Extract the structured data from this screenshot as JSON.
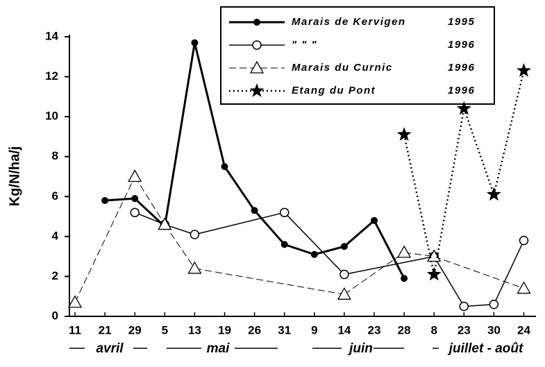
{
  "chart_data": {
    "type": "line",
    "y_label": "Kg/N/ha/j",
    "categories": [
      "11",
      "21",
      "29",
      "5",
      "13",
      "19",
      "26",
      "31",
      "9",
      "14",
      "23",
      "28",
      "8",
      "23",
      "30",
      "24"
    ],
    "months": [
      "avril",
      "mai",
      "juin",
      "juillet - août"
    ],
    "ylim": [
      0,
      14
    ],
    "yticks": [
      0,
      2,
      4,
      6,
      8,
      10,
      12,
      14
    ],
    "series": [
      {
        "name": "Marais de Kervigen",
        "period": "1995",
        "color": "#000000",
        "dash": "solid",
        "marker": "filled-circle",
        "values": [
          null,
          5.8,
          5.9,
          4.5,
          13.7,
          7.5,
          5.3,
          3.6,
          3.1,
          3.5,
          4.8,
          1.9,
          null,
          null,
          null,
          null
        ]
      },
      {
        "name": "\"     \"     \"",
        "period": "1996",
        "color": "#000000",
        "dash": "solid",
        "marker": "open-circle",
        "values": [
          null,
          null,
          5.2,
          4.6,
          4.1,
          null,
          null,
          5.2,
          null,
          2.1,
          null,
          null,
          3.0,
          0.5,
          0.6,
          3.8
        ]
      },
      {
        "name": "Marais du Curnic",
        "period": "1996",
        "color": "#000000",
        "dash": "dashed",
        "marker": "open-triangle",
        "values": [
          0.7,
          null,
          7.0,
          4.6,
          2.4,
          null,
          null,
          null,
          null,
          1.1,
          null,
          3.2,
          3.0,
          null,
          null,
          1.4
        ]
      },
      {
        "name": "Etang du Pont",
        "period": "1996",
        "color": "#000000",
        "dash": "dotted",
        "marker": "star",
        "values": [
          null,
          null,
          null,
          null,
          null,
          null,
          null,
          null,
          null,
          null,
          null,
          9.1,
          2.1,
          10.4,
          6.1,
          12.3
        ]
      }
    ]
  }
}
